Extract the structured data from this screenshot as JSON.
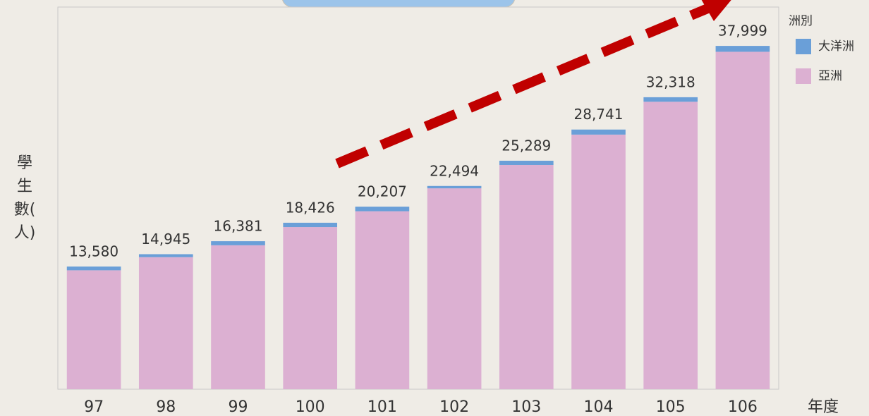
{
  "chart_data": {
    "type": "stacked_bar",
    "ylabel": "學生數(人)",
    "xlabel": "年度",
    "legend_title": "洲別",
    "legend_position": "right",
    "categories": [
      "97",
      "98",
      "99",
      "100",
      "101",
      "102",
      "103",
      "104",
      "105",
      "106"
    ],
    "series": [
      {
        "name": "亞洲",
        "color": "#dcb0d2",
        "values": [
          13160,
          14615,
          15931,
          17946,
          19697,
          22234,
          24819,
          28181,
          31818,
          37349
        ]
      },
      {
        "name": "大洋洲",
        "color": "#6a9fd8",
        "values": [
          420,
          330,
          450,
          480,
          510,
          260,
          470,
          560,
          500,
          650
        ]
      }
    ],
    "totals": [
      13580,
      14945,
      16381,
      18426,
      20207,
      22494,
      25289,
      28741,
      32318,
      37999
    ],
    "total_labels": [
      "13,580",
      "14,945",
      "16,381",
      "18,426",
      "20,207",
      "22,494",
      "25,289",
      "28,741",
      "32,318",
      "37,999"
    ],
    "ylim": [
      0,
      42300
    ]
  }
}
